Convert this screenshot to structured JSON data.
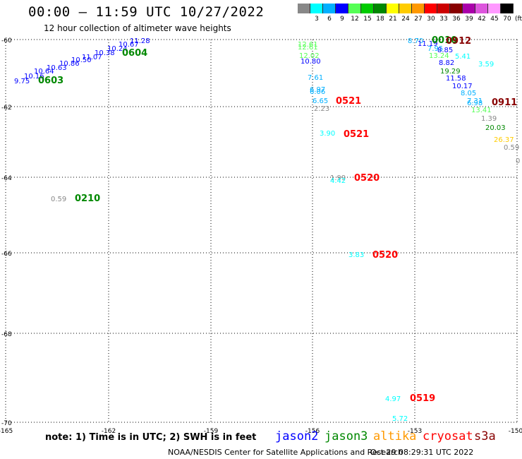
{
  "header": {
    "title": "00:00 – 11:59 UTC 10/27/2022",
    "subtitle": "12 hour collection of altimeter wave heights"
  },
  "legend": {
    "unit": "(ft)",
    "items": [
      {
        "label": "",
        "color": "#888888"
      },
      {
        "label": "3",
        "color": "#00ffff"
      },
      {
        "label": "6",
        "color": "#00b0ff"
      },
      {
        "label": "9",
        "color": "#0000ff"
      },
      {
        "label": "12",
        "color": "#55ff55"
      },
      {
        "label": "15",
        "color": "#00cc00"
      },
      {
        "label": "18",
        "color": "#008800"
      },
      {
        "label": "21",
        "color": "#ffff00"
      },
      {
        "label": "24",
        "color": "#ffcc00"
      },
      {
        "label": "27",
        "color": "#ff9900"
      },
      {
        "label": "30",
        "color": "#ff0000"
      },
      {
        "label": "33",
        "color": "#cc0000"
      },
      {
        "label": "36",
        "color": "#880000"
      },
      {
        "label": "39",
        "color": "#aa00aa"
      },
      {
        "label": "42",
        "color": "#dd55dd"
      },
      {
        "label": "45",
        "color": "#ff99ff"
      },
      {
        "label": "70",
        "color": "#000000"
      }
    ]
  },
  "axes": {
    "x_ticks": [
      "-165",
      "-162",
      "-159",
      "-156",
      "-153",
      "-150"
    ],
    "y_ticks": [
      "-60",
      "-62",
      "-64",
      "-66",
      "-68",
      "-70"
    ]
  },
  "observations": [
    {
      "text": "9.75",
      "color": "#0000ff"
    },
    {
      "text": "10.16",
      "color": "#0000ff"
    },
    {
      "text": "10.64",
      "color": "#0000ff"
    },
    {
      "text": "10.63",
      "color": "#0000ff"
    },
    {
      "text": "10.86",
      "color": "#0000ff"
    },
    {
      "text": "10.50",
      "color": "#0000ff"
    },
    {
      "text": "11.07",
      "color": "#0000ff"
    },
    {
      "text": "10.38",
      "color": "#0000ff"
    },
    {
      "text": "10.24",
      "color": "#0000ff"
    },
    {
      "text": "10.67",
      "color": "#0000ff"
    },
    {
      "text": "11.28",
      "color": "#0000ff"
    },
    {
      "text": "0603",
      "color": "#008800"
    },
    {
      "text": "0604",
      "color": "#008800"
    },
    {
      "text": "0.59",
      "color": "#888888"
    },
    {
      "text": "0210",
      "color": "#008800"
    },
    {
      "text": "12.61",
      "color": "#55ff55"
    },
    {
      "text": "12.61",
      "color": "#55ff55"
    },
    {
      "text": "12.02",
      "color": "#55ff55"
    },
    {
      "text": "10.80",
      "color": "#0000ff"
    },
    {
      "text": "7.61",
      "color": "#00b0ff"
    },
    {
      "text": "6.97",
      "color": "#00b0ff"
    },
    {
      "text": "6.06",
      "color": "#00b0ff"
    },
    {
      "text": "6.65",
      "color": "#00b0ff"
    },
    {
      "text": "2.23",
      "color": "#888888"
    },
    {
      "text": "0521",
      "color": "#ff0000"
    },
    {
      "text": "3.90",
      "color": "#00ffff"
    },
    {
      "text": "0521",
      "color": "#ff0000"
    },
    {
      "text": "1.99",
      "color": "#888888"
    },
    {
      "text": "4.42",
      "color": "#00ffff"
    },
    {
      "text": "0520",
      "color": "#ff0000"
    },
    {
      "text": "3.83",
      "color": "#00ffff"
    },
    {
      "text": "0520",
      "color": "#ff0000"
    },
    {
      "text": "4.97",
      "color": "#00ffff"
    },
    {
      "text": "0519",
      "color": "#ff0000"
    },
    {
      "text": "5.72",
      "color": "#00ffff"
    },
    {
      "text": "8.70",
      "color": "#00b0ff"
    },
    {
      "text": "11.19",
      "color": "#0000ff"
    },
    {
      "text": "0010",
      "color": "#008800"
    },
    {
      "text": "0912",
      "color": "#880000"
    },
    {
      "text": "7.95",
      "color": "#00b0ff"
    },
    {
      "text": "8.85",
      "color": "#0000ff"
    },
    {
      "text": "13.24",
      "color": "#55ff55"
    },
    {
      "text": "5.41",
      "color": "#00ffff"
    },
    {
      "text": "8.82",
      "color": "#0000ff"
    },
    {
      "text": "3.59",
      "color": "#00ffff"
    },
    {
      "text": "19.29",
      "color": "#008800"
    },
    {
      "text": "11.58",
      "color": "#0000ff"
    },
    {
      "text": "10.17",
      "color": "#0000ff"
    },
    {
      "text": "8.05",
      "color": "#00b0ff"
    },
    {
      "text": "7.31",
      "color": "#00b0ff"
    },
    {
      "text": "6.98",
      "color": "#00b0ff"
    },
    {
      "text": "0911",
      "color": "#880000"
    },
    {
      "text": "13.41",
      "color": "#55ff55"
    },
    {
      "text": "1.39",
      "color": "#888888"
    },
    {
      "text": "20.03",
      "color": "#008800"
    },
    {
      "text": "26.37",
      "color": "#ffcc00"
    },
    {
      "text": "0.59",
      "color": "#888888"
    },
    {
      "text": "0",
      "color": "#888888"
    }
  ],
  "footer": {
    "note": "note:  1) Time is in UTC;  2) SWH is in feet",
    "satellites": [
      {
        "name": "jason2",
        "color": "#0000ff"
      },
      {
        "name": "jason3",
        "color": "#008800"
      },
      {
        "name": "altika",
        "color": "#ff9900"
      },
      {
        "name": "cryosat",
        "color": "#ff0000"
      },
      {
        "name": "s3a",
        "color": "#880000"
      }
    ],
    "credit": "NOAA/NESDIS Center for Satellite Applications and Research",
    "timestamp": "Oct 29 08:29:31 UTC 2022"
  }
}
